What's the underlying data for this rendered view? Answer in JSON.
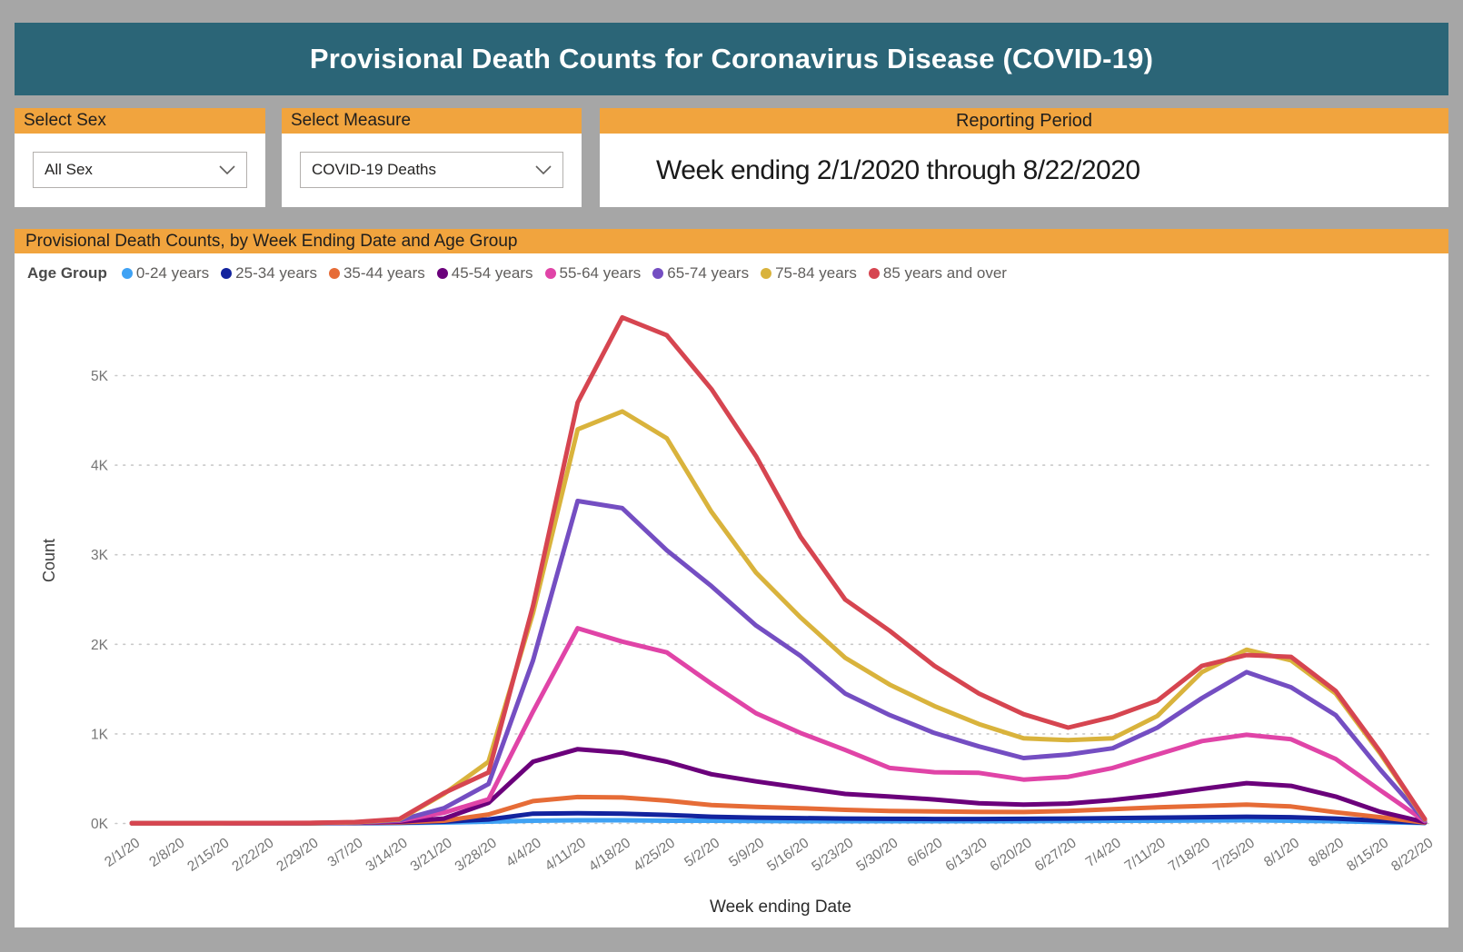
{
  "header": {
    "title": "Provisional Death Counts for Coronavirus Disease (COVID-19)"
  },
  "filters": {
    "sex": {
      "label": "Select Sex",
      "value": "All Sex"
    },
    "measure": {
      "label": "Select Measure",
      "value": "COVID-19 Deaths"
    },
    "reporting_period": {
      "label": "Reporting Period",
      "value": "Week ending 2/1/2020 through 8/22/2020"
    }
  },
  "colors": {
    "teal_header": "#2b6577",
    "orange_accent": "#f1a43e",
    "canvas_gray": "#a6a6a6",
    "axis_text": "#757575",
    "gridline": "#c9c9c9"
  },
  "chart": {
    "title": "Provisional Death Counts, by Week Ending Date and Age Group",
    "legend_title": "Age Group"
  },
  "chart_data": {
    "type": "line",
    "title": "Provisional Death Counts, by Week Ending Date and Age Group",
    "xlabel": "Week ending Date",
    "ylabel": "Count",
    "ylim": [
      0,
      5800
    ],
    "y_tick_labels": [
      "0K",
      "1K",
      "2K",
      "3K",
      "4K",
      "5K"
    ],
    "grid": "dotted-horizontal",
    "legend_position": "top-left",
    "x": [
      "2/1/20",
      "2/8/20",
      "2/15/20",
      "2/22/20",
      "2/29/20",
      "3/7/20",
      "3/14/20",
      "3/21/20",
      "3/28/20",
      "4/4/20",
      "4/11/20",
      "4/18/20",
      "4/25/20",
      "5/2/20",
      "5/9/20",
      "5/16/20",
      "5/23/20",
      "5/30/20",
      "6/6/20",
      "6/13/20",
      "6/20/20",
      "6/27/20",
      "7/4/20",
      "7/11/20",
      "7/18/20",
      "7/25/20",
      "8/1/20",
      "8/8/20",
      "8/15/20",
      "8/22/20"
    ],
    "series": [
      {
        "name": "0-24 years",
        "color": "#3FA2F4",
        "values": [
          2,
          2,
          2,
          2,
          2,
          3,
          5,
          10,
          20,
          30,
          35,
          35,
          30,
          30,
          28,
          25,
          25,
          25,
          25,
          25,
          25,
          28,
          30,
          30,
          32,
          35,
          30,
          25,
          15,
          5
        ]
      },
      {
        "name": "25-34 years",
        "color": "#12239E",
        "values": [
          2,
          2,
          2,
          2,
          3,
          5,
          8,
          20,
          45,
          110,
          115,
          110,
          95,
          75,
          65,
          60,
          55,
          52,
          50,
          50,
          52,
          55,
          60,
          65,
          70,
          75,
          70,
          55,
          30,
          8
        ]
      },
      {
        "name": "35-44 years",
        "color": "#E66C37",
        "values": [
          2,
          2,
          2,
          3,
          3,
          8,
          12,
          30,
          100,
          250,
          295,
          290,
          255,
          205,
          185,
          170,
          152,
          140,
          135,
          130,
          128,
          140,
          160,
          180,
          195,
          210,
          190,
          125,
          70,
          10
        ]
      },
      {
        "name": "45-54 years",
        "color": "#6B007B",
        "values": [
          2,
          2,
          2,
          3,
          4,
          8,
          20,
          55,
          230,
          690,
          830,
          790,
          690,
          550,
          470,
          400,
          330,
          300,
          268,
          225,
          210,
          222,
          262,
          315,
          385,
          450,
          420,
          300,
          130,
          15
        ]
      },
      {
        "name": "55-64 years",
        "color": "#E044A7",
        "values": [
          2,
          2,
          3,
          3,
          5,
          10,
          30,
          120,
          270,
          1250,
          2180,
          2030,
          1910,
          1560,
          1230,
          1010,
          820,
          620,
          572,
          565,
          490,
          520,
          620,
          770,
          920,
          990,
          940,
          720,
          370,
          25
        ]
      },
      {
        "name": "65-74 years",
        "color": "#744EC2",
        "values": [
          2,
          2,
          3,
          4,
          5,
          10,
          35,
          170,
          440,
          1820,
          3600,
          3520,
          3050,
          2650,
          2210,
          1870,
          1450,
          1210,
          1010,
          860,
          730,
          770,
          840,
          1070,
          1400,
          1690,
          1520,
          1210,
          600,
          35
        ]
      },
      {
        "name": "75-84 years",
        "color": "#D9B33C",
        "values": [
          2,
          2,
          3,
          4,
          5,
          12,
          45,
          330,
          690,
          2350,
          4400,
          4600,
          4300,
          3480,
          2800,
          2300,
          1850,
          1550,
          1310,
          1110,
          950,
          930,
          950,
          1200,
          1690,
          1940,
          1820,
          1450,
          780,
          45
        ]
      },
      {
        "name": "85 years and over",
        "color": "#D64550",
        "values": [
          3,
          3,
          4,
          5,
          6,
          15,
          50,
          340,
          570,
          2430,
          4700,
          5650,
          5450,
          4850,
          4100,
          3200,
          2500,
          2150,
          1760,
          1450,
          1220,
          1070,
          1190,
          1370,
          1760,
          1880,
          1860,
          1480,
          800,
          50
        ]
      }
    ]
  }
}
